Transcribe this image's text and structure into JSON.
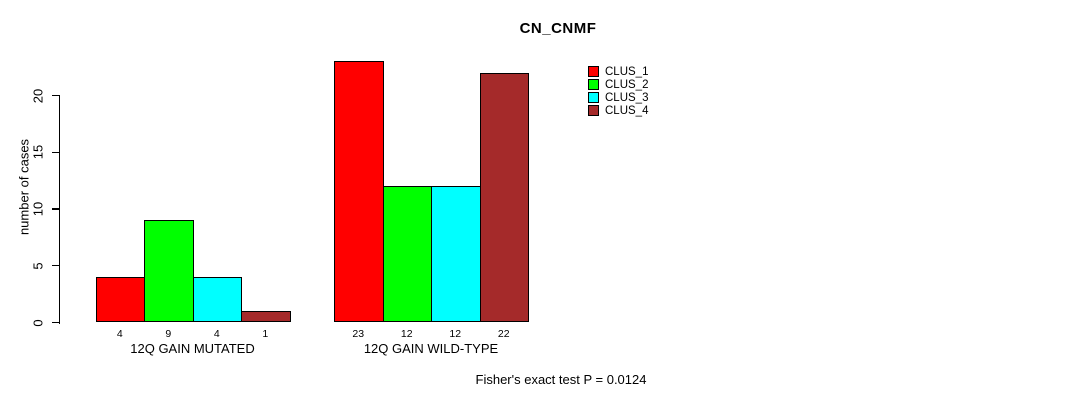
{
  "chart_data": {
    "type": "bar",
    "title": "CN_CNMF",
    "ylabel": "number of cases",
    "xlabel": "",
    "annotation": "Fisher's exact test P = 0.0124",
    "categories": [
      "12Q GAIN MUTATED",
      "12Q GAIN WILD-TYPE"
    ],
    "series": [
      {
        "name": "CLUS_1",
        "color": "#ff0000",
        "values": [
          4,
          23
        ]
      },
      {
        "name": "CLUS_2",
        "color": "#00ff00",
        "values": [
          9,
          12
        ]
      },
      {
        "name": "CLUS_3",
        "color": "#00ffff",
        "values": [
          4,
          12
        ]
      },
      {
        "name": "CLUS_4",
        "color": "#a52a2a",
        "values": [
          1,
          22
        ]
      }
    ],
    "yticks": [
      0,
      5,
      10,
      15,
      20
    ],
    "ylim": [
      0,
      23.6
    ],
    "bar_value_labels": [
      [
        "4",
        "9",
        "4",
        "1"
      ],
      [
        "23",
        "12",
        "12",
        "22"
      ]
    ],
    "legend_position": "top-right",
    "grid": false,
    "background": "#ffffff",
    "axis_color": "#000000",
    "bar_border_color": "#000000"
  }
}
